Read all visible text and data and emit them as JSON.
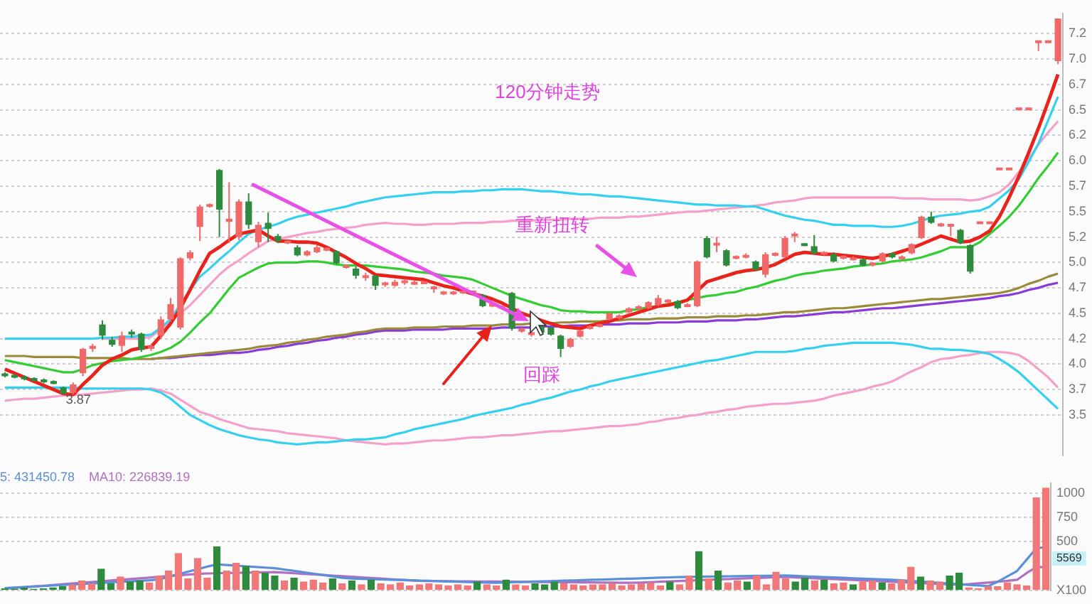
{
  "chart_data": [
    {
      "type": "candlestick",
      "title": "120分钟走势",
      "tick_labels": "y",
      "grid": "y",
      "categories": [
        null,
        null,
        null,
        null,
        null,
        null,
        null,
        null,
        null,
        null,
        null,
        null,
        null,
        null,
        null,
        null,
        null,
        null,
        null,
        null,
        null,
        null,
        null,
        null,
        null,
        null,
        null,
        null,
        null,
        null,
        null,
        null,
        null,
        null,
        null,
        null,
        null,
        null,
        null,
        null,
        null,
        null,
        null,
        null,
        null,
        null,
        null,
        null,
        null,
        null,
        null,
        null,
        null,
        null,
        null,
        null,
        null,
        null,
        null,
        null,
        null,
        null,
        null,
        null,
        null,
        null,
        null,
        null,
        null,
        null,
        null,
        null,
        null,
        null,
        null,
        null,
        null,
        null,
        null,
        null,
        null,
        null,
        null,
        null,
        null,
        null,
        null,
        null,
        null,
        null,
        null,
        null,
        null,
        null,
        null,
        null,
        null,
        null,
        null,
        null,
        null,
        null,
        null,
        null,
        null,
        null,
        null,
        null,
        null
      ],
      "ohlc": [
        [
          3.9,
          3.92,
          3.87,
          3.89
        ],
        [
          3.89,
          3.9,
          3.86,
          3.87
        ],
        [
          3.87,
          3.89,
          3.84,
          3.86
        ],
        [
          3.86,
          3.87,
          3.83,
          3.84
        ],
        [
          3.84,
          3.86,
          3.81,
          3.83
        ],
        [
          3.83,
          3.84,
          3.8,
          3.81
        ],
        [
          3.77,
          3.78,
          3.7,
          3.71
        ],
        [
          3.72,
          3.82,
          3.7,
          3.8
        ],
        [
          3.91,
          4.16,
          3.88,
          4.15
        ],
        [
          4.15,
          4.2,
          4.12,
          4.18
        ],
        [
          4.39,
          4.43,
          4.24,
          4.28
        ],
        [
          4.24,
          4.27,
          4.17,
          4.19
        ],
        [
          4.18,
          4.32,
          4.12,
          4.28
        ],
        [
          4.31,
          4.34,
          4.26,
          4.3
        ],
        [
          4.3,
          4.31,
          4.12,
          4.14
        ],
        [
          4.15,
          4.2,
          4.13,
          4.18
        ],
        [
          4.28,
          4.47,
          4.25,
          4.44
        ],
        [
          4.44,
          4.65,
          4.42,
          4.59
        ],
        [
          4.36,
          5.05,
          4.34,
          5.04
        ],
        [
          5.04,
          5.12,
          5.02,
          5.1
        ],
        [
          5.35,
          5.57,
          5.21,
          5.55
        ],
        [
          5.56,
          5.58,
          5.54,
          5.56
        ],
        [
          5.91,
          5.92,
          5.25,
          5.52
        ],
        [
          5.4,
          5.79,
          5.19,
          5.43
        ],
        [
          5.25,
          5.62,
          5.22,
          5.6
        ],
        [
          5.6,
          5.68,
          5.33,
          5.37
        ],
        [
          5.2,
          5.4,
          5.15,
          5.37
        ],
        [
          5.39,
          5.49,
          5.2,
          5.33
        ],
        [
          5.26,
          5.28,
          5.19,
          5.21
        ],
        [
          5.2,
          5.22,
          5.18,
          5.2
        ],
        [
          5.15,
          5.17,
          5.06,
          5.07
        ],
        [
          5.07,
          5.12,
          5.06,
          5.11
        ],
        [
          5.1,
          5.17,
          5.09,
          5.15
        ],
        [
          5.13,
          5.15,
          5.11,
          5.13
        ],
        [
          5.11,
          5.12,
          4.98,
          4.99
        ],
        [
          4.96,
          4.98,
          4.94,
          4.96
        ],
        [
          4.94,
          4.96,
          4.84,
          4.87
        ],
        [
          4.86,
          4.9,
          4.82,
          4.86
        ],
        [
          4.87,
          4.88,
          4.73,
          4.77
        ],
        [
          4.79,
          4.81,
          4.76,
          4.79
        ],
        [
          4.77,
          4.83,
          4.76,
          4.81
        ],
        [
          4.81,
          4.84,
          4.78,
          4.81
        ],
        [
          4.79,
          4.82,
          4.78,
          4.8
        ],
        [
          4.8,
          4.82,
          4.79,
          4.8
        ],
        [
          4.75,
          4.77,
          4.7,
          4.75
        ],
        [
          4.7,
          4.72,
          4.68,
          4.7
        ],
        [
          4.7,
          4.72,
          4.68,
          4.7
        ],
        [
          4.71,
          4.73,
          4.69,
          4.71
        ],
        [
          4.71,
          4.72,
          4.69,
          4.71
        ],
        [
          4.68,
          4.69,
          4.56,
          4.57
        ],
        [
          4.58,
          4.6,
          4.56,
          4.58
        ],
        [
          4.56,
          4.58,
          4.54,
          4.56
        ],
        [
          4.7,
          4.71,
          4.33,
          4.35
        ],
        [
          4.32,
          4.36,
          4.31,
          4.35
        ],
        [
          4.3,
          4.32,
          4.27,
          4.3
        ],
        [
          4.37,
          4.38,
          4.3,
          4.31
        ],
        [
          4.36,
          4.37,
          4.28,
          4.29
        ],
        [
          4.28,
          4.29,
          4.07,
          4.15
        ],
        [
          4.17,
          4.26,
          4.16,
          4.25
        ],
        [
          4.27,
          4.34,
          4.26,
          4.33
        ],
        [
          4.36,
          4.38,
          4.34,
          4.36
        ],
        [
          4.37,
          4.4,
          4.36,
          4.39
        ],
        [
          4.44,
          4.51,
          4.43,
          4.5
        ],
        [
          4.45,
          4.49,
          4.44,
          4.48
        ],
        [
          4.51,
          4.56,
          4.5,
          4.55
        ],
        [
          4.55,
          4.58,
          4.53,
          4.56
        ],
        [
          4.55,
          4.62,
          4.54,
          4.61
        ],
        [
          4.58,
          4.68,
          4.57,
          4.65
        ],
        [
          4.62,
          4.64,
          4.6,
          4.62
        ],
        [
          4.62,
          4.63,
          4.54,
          4.55
        ],
        [
          4.57,
          4.6,
          4.56,
          4.58
        ],
        [
          4.57,
          5.02,
          4.56,
          5.01
        ],
        [
          5.24,
          5.26,
          5.04,
          5.05
        ],
        [
          5.18,
          5.25,
          5.1,
          5.18
        ],
        [
          5.12,
          5.13,
          4.96,
          4.97
        ],
        [
          5.05,
          5.07,
          5.03,
          5.05
        ],
        [
          5.05,
          5.09,
          5.04,
          5.07
        ],
        [
          5.01,
          5.02,
          4.92,
          4.93
        ],
        [
          4.88,
          5.1,
          4.85,
          5.08
        ],
        [
          5.08,
          5.1,
          5.06,
          5.08
        ],
        [
          5.05,
          5.26,
          5.04,
          5.24
        ],
        [
          5.27,
          5.3,
          5.2,
          5.27
        ],
        [
          5.18,
          5.19,
          5.16,
          5.17
        ],
        [
          5.16,
          5.27,
          5.08,
          5.09
        ],
        [
          5.09,
          5.11,
          5.07,
          5.09
        ],
        [
          5.08,
          5.1,
          5.0,
          5.01
        ],
        [
          5.05,
          5.07,
          5.03,
          5.05
        ],
        [
          5.03,
          5.06,
          5.02,
          5.04
        ],
        [
          5.03,
          5.04,
          4.96,
          4.97
        ],
        [
          4.98,
          5.0,
          4.96,
          4.99
        ],
        [
          5.01,
          5.1,
          5.0,
          5.09
        ],
        [
          5.09,
          5.1,
          5.04,
          5.05
        ],
        [
          5.04,
          5.07,
          5.03,
          5.05
        ],
        [
          5.09,
          5.19,
          5.08,
          5.18
        ],
        [
          5.24,
          5.46,
          5.23,
          5.45
        ],
        [
          5.45,
          5.5,
          5.38,
          5.39
        ],
        [
          5.37,
          5.39,
          5.35,
          5.37
        ],
        [
          5.36,
          5.38,
          5.26,
          5.37
        ],
        [
          5.32,
          5.33,
          5.18,
          5.19
        ],
        [
          5.17,
          5.18,
          4.89,
          4.91
        ],
        [
          5.39,
          5.39,
          5.39,
          5.39
        ],
        [
          5.39,
          5.39,
          5.39,
          5.39
        ],
        [
          5.92,
          5.92,
          5.92,
          5.92
        ],
        [
          5.92,
          5.92,
          5.92,
          5.92
        ],
        [
          6.51,
          6.51,
          6.51,
          6.51
        ],
        [
          6.51,
          6.51,
          6.51,
          6.51
        ],
        [
          7.17,
          7.17,
          7.08,
          7.17
        ],
        [
          7.17,
          7.17,
          7.17,
          7.17
        ],
        [
          6.98,
          7.4,
          6.95,
          7.4
        ]
      ],
      "series": [
        {
          "type": "line",
          "color": "#e8231b",
          "values": [
            3.95,
            3.91,
            3.87,
            3.83,
            3.79,
            3.75,
            3.71,
            3.7,
            3.8,
            3.89,
            3.99,
            4.05,
            4.09,
            4.14,
            4.16,
            4.17,
            4.28,
            4.4,
            4.55,
            4.73,
            4.92,
            5.09,
            5.15,
            5.22,
            5.28,
            5.3,
            5.32,
            5.26,
            5.21,
            5.21,
            5.2,
            5.2,
            5.19,
            5.15,
            5.1,
            5.05,
            4.99,
            4.94,
            4.88,
            4.87,
            4.86,
            4.85,
            4.84,
            4.83,
            4.8,
            4.77,
            4.75,
            4.72,
            4.69,
            4.67,
            4.64,
            4.6,
            4.55,
            4.5,
            4.47,
            4.43,
            4.4,
            4.37,
            4.36,
            4.35,
            4.38,
            4.4,
            4.42,
            4.45,
            4.48,
            4.51,
            4.54,
            4.57,
            4.58,
            4.6,
            4.63,
            4.72,
            4.81,
            4.84,
            4.87,
            4.9,
            4.92,
            4.93,
            4.95,
            4.98,
            5.03,
            5.08,
            5.1,
            5.09,
            5.08,
            5.08,
            5.07,
            5.06,
            5.05,
            5.04,
            5.06,
            5.08,
            5.11,
            5.14,
            5.18,
            5.22,
            5.26,
            5.23,
            5.2,
            5.21,
            5.25,
            5.31,
            5.45,
            5.64,
            5.85,
            6.08,
            6.32,
            6.58,
            6.85
          ]
        },
        {
          "type": "line",
          "color": "#33cc33",
          "values": [
            4.04,
            4.02,
            4.0,
            3.98,
            3.96,
            3.94,
            3.92,
            3.92,
            3.95,
            3.99,
            4.01,
            4.03,
            4.04,
            4.05,
            4.07,
            4.09,
            4.12,
            4.16,
            4.22,
            4.31,
            4.41,
            4.5,
            4.62,
            4.74,
            4.85,
            4.9,
            4.95,
            4.99,
            5.0,
            5.0,
            5.0,
            5.01,
            5.01,
            5.0,
            4.98,
            4.97,
            4.97,
            4.97,
            4.96,
            4.95,
            4.94,
            4.93,
            4.91,
            4.9,
            4.89,
            4.87,
            4.86,
            4.85,
            4.83,
            4.79,
            4.75,
            4.71,
            4.67,
            4.64,
            4.61,
            4.58,
            4.56,
            4.53,
            4.52,
            4.52,
            4.51,
            4.51,
            4.51,
            4.51,
            4.53,
            4.54,
            4.56,
            4.57,
            4.59,
            4.61,
            4.63,
            4.65,
            4.67,
            4.68,
            4.7,
            4.71,
            4.74,
            4.76,
            4.79,
            4.82,
            4.84,
            4.87,
            4.89,
            4.9,
            4.92,
            4.93,
            4.94,
            4.96,
            4.97,
            4.98,
            4.99,
            5.01,
            5.02,
            5.03,
            5.05,
            5.08,
            5.11,
            5.15,
            5.15,
            5.15,
            5.2,
            5.28,
            5.36,
            5.45,
            5.56,
            5.69,
            5.83,
            5.95,
            6.08
          ]
        },
        {
          "type": "line",
          "color": "#33d0f0",
          "values": [
            4.25,
            4.25,
            4.25,
            4.25,
            4.25,
            4.25,
            4.25,
            4.25,
            4.25,
            4.25,
            4.26,
            4.26,
            4.27,
            4.27,
            4.28,
            4.29,
            4.36,
            4.44,
            4.59,
            4.73,
            4.86,
            4.94,
            5.03,
            5.11,
            5.2,
            5.28,
            5.32,
            5.35,
            5.38,
            5.42,
            5.45,
            5.47,
            5.49,
            5.51,
            5.53,
            5.55,
            5.58,
            5.6,
            5.62,
            5.64,
            5.65,
            5.66,
            5.67,
            5.68,
            5.69,
            5.69,
            5.69,
            5.7,
            5.7,
            5.71,
            5.71,
            5.72,
            5.72,
            5.72,
            5.71,
            5.7,
            5.7,
            5.69,
            5.68,
            5.67,
            5.67,
            5.66,
            5.65,
            5.65,
            5.64,
            5.63,
            5.62,
            5.61,
            5.6,
            5.59,
            5.58,
            5.57,
            5.57,
            5.56,
            5.56,
            5.56,
            5.55,
            5.55,
            5.52,
            5.49,
            5.46,
            5.44,
            5.42,
            5.41,
            5.39,
            5.37,
            5.37,
            5.36,
            5.36,
            5.36,
            5.35,
            5.35,
            5.36,
            5.38,
            5.41,
            5.44,
            5.46,
            5.47,
            5.48,
            5.5,
            5.51,
            5.55,
            5.63,
            5.71,
            5.82,
            5.99,
            6.17,
            6.4,
            6.63
          ]
        },
        {
          "type": "line",
          "color": "#f4a0c8",
          "values": [
            null,
            null,
            null,
            null,
            null,
            null,
            null,
            null,
            null,
            null,
            4.25,
            4.25,
            4.25,
            4.25,
            4.25,
            4.27,
            4.34,
            4.42,
            4.5,
            4.58,
            4.68,
            4.78,
            4.88,
            4.96,
            5.02,
            5.09,
            5.15,
            5.21,
            5.23,
            5.25,
            5.27,
            5.29,
            5.3,
            5.32,
            5.33,
            5.34,
            5.35,
            5.37,
            5.38,
            5.39,
            5.38,
            5.38,
            5.37,
            5.37,
            5.38,
            5.38,
            5.38,
            5.39,
            5.39,
            5.39,
            5.4,
            5.4,
            5.41,
            5.41,
            5.41,
            5.42,
            5.42,
            5.42,
            5.43,
            5.43,
            5.43,
            5.44,
            5.44,
            5.44,
            5.45,
            5.45,
            5.46,
            5.47,
            5.48,
            5.49,
            5.5,
            5.5,
            5.51,
            5.52,
            5.53,
            5.54,
            5.55,
            5.56,
            5.57,
            5.59,
            5.6,
            5.61,
            5.63,
            5.64,
            5.64,
            5.64,
            5.64,
            5.64,
            5.64,
            5.64,
            5.64,
            5.64,
            5.63,
            5.63,
            5.63,
            5.62,
            5.62,
            5.62,
            5.62,
            5.61,
            5.62,
            5.65,
            5.69,
            5.77,
            5.89,
            6.02,
            6.16,
            6.28,
            6.39
          ]
        },
        {
          "type": "line",
          "color": "#33d0f0",
          "values": [
            3.77,
            3.77,
            3.77,
            3.77,
            3.77,
            3.77,
            3.77,
            3.77,
            3.76,
            3.76,
            3.76,
            3.76,
            3.76,
            3.76,
            3.76,
            3.75,
            3.72,
            3.66,
            3.58,
            3.5,
            3.45,
            3.4,
            3.36,
            3.33,
            3.3,
            3.28,
            3.26,
            3.25,
            3.23,
            3.22,
            3.21,
            3.22,
            3.23,
            3.23,
            3.24,
            3.25,
            3.26,
            3.26,
            3.27,
            3.28,
            3.31,
            3.33,
            3.36,
            3.38,
            3.4,
            3.42,
            3.44,
            3.46,
            3.49,
            3.51,
            3.53,
            3.55,
            3.57,
            3.6,
            3.62,
            3.65,
            3.67,
            3.7,
            3.73,
            3.75,
            3.78,
            3.8,
            3.83,
            3.85,
            3.87,
            3.89,
            3.91,
            3.93,
            3.95,
            3.97,
            3.99,
            4.01,
            4.03,
            4.04,
            4.06,
            4.08,
            4.1,
            4.12,
            4.12,
            4.12,
            4.12,
            4.13,
            4.15,
            4.16,
            4.18,
            4.19,
            4.2,
            4.21,
            4.21,
            4.21,
            4.21,
            4.21,
            4.2,
            4.19,
            4.17,
            4.15,
            4.15,
            4.14,
            4.14,
            4.13,
            4.12,
            4.1,
            4.05,
            3.99,
            3.92,
            3.83,
            3.74,
            3.65,
            3.56
          ]
        },
        {
          "type": "line",
          "color": "#f4a0c8",
          "values": [
            3.64,
            3.65,
            3.66,
            3.66,
            3.67,
            3.68,
            3.69,
            3.7,
            3.7,
            3.71,
            3.72,
            3.73,
            3.74,
            3.75,
            3.75,
            3.76,
            3.74,
            3.71,
            3.65,
            3.59,
            3.53,
            3.5,
            3.46,
            3.43,
            3.4,
            3.37,
            3.36,
            3.35,
            3.34,
            3.32,
            3.31,
            3.3,
            3.29,
            3.28,
            3.27,
            3.25,
            3.24,
            3.23,
            3.22,
            3.21,
            3.22,
            3.22,
            3.23,
            3.24,
            3.25,
            3.25,
            3.26,
            3.27,
            3.28,
            3.28,
            3.29,
            3.3,
            3.3,
            3.31,
            3.32,
            3.33,
            3.34,
            3.34,
            3.35,
            3.36,
            3.37,
            3.38,
            3.39,
            3.39,
            3.4,
            3.41,
            3.43,
            3.44,
            3.46,
            3.47,
            3.49,
            3.5,
            3.52,
            3.53,
            3.55,
            3.56,
            3.58,
            3.59,
            3.6,
            3.61,
            3.61,
            3.62,
            3.63,
            3.64,
            3.66,
            3.69,
            3.71,
            3.73,
            3.75,
            3.78,
            3.8,
            3.83,
            3.88,
            3.93,
            3.97,
            4.02,
            4.05,
            4.06,
            4.08,
            4.09,
            4.11,
            4.12,
            4.12,
            4.11,
            4.09,
            4.03,
            3.95,
            3.87,
            3.77
          ]
        },
        {
          "type": "line",
          "color": "#9a8a3a",
          "values": [
            4.08,
            4.08,
            4.08,
            4.07,
            4.07,
            4.07,
            4.07,
            4.07,
            4.06,
            4.06,
            4.06,
            4.06,
            4.06,
            4.05,
            4.05,
            4.05,
            4.06,
            4.07,
            4.08,
            4.09,
            4.1,
            4.11,
            4.12,
            4.13,
            4.14,
            4.15,
            4.17,
            4.18,
            4.19,
            4.21,
            4.22,
            4.24,
            4.25,
            4.27,
            4.28,
            4.29,
            4.31,
            4.32,
            4.34,
            4.35,
            4.35,
            4.35,
            4.36,
            4.36,
            4.36,
            4.37,
            4.37,
            4.37,
            4.38,
            4.38,
            4.38,
            4.39,
            4.39,
            4.39,
            4.4,
            4.4,
            4.4,
            4.41,
            4.41,
            4.42,
            4.42,
            4.42,
            4.43,
            4.43,
            4.44,
            4.44,
            4.44,
            4.45,
            4.45,
            4.45,
            4.46,
            4.46,
            4.46,
            4.47,
            4.47,
            4.47,
            4.48,
            4.48,
            4.49,
            4.5,
            4.51,
            4.51,
            4.52,
            4.53,
            4.54,
            4.55,
            4.55,
            4.56,
            4.57,
            4.58,
            4.59,
            4.6,
            4.61,
            4.62,
            4.63,
            4.64,
            4.64,
            4.65,
            4.66,
            4.67,
            4.68,
            4.69,
            4.7,
            4.72,
            4.75,
            4.79,
            4.82,
            4.86,
            4.89
          ]
        },
        {
          "type": "line",
          "color": "#8a3ad8",
          "values": [
            null,
            null,
            null,
            null,
            null,
            null,
            null,
            null,
            null,
            null,
            null,
            null,
            null,
            null,
            null,
            4.05,
            4.06,
            4.06,
            4.07,
            4.08,
            4.09,
            4.09,
            4.1,
            4.11,
            4.11,
            4.12,
            4.14,
            4.15,
            4.17,
            4.18,
            4.2,
            4.21,
            4.23,
            4.24,
            4.26,
            4.27,
            4.29,
            4.3,
            4.32,
            4.33,
            4.33,
            4.33,
            4.34,
            4.34,
            4.34,
            4.34,
            4.35,
            4.35,
            4.35,
            4.35,
            4.35,
            4.36,
            4.36,
            4.36,
            4.36,
            4.37,
            4.37,
            4.37,
            4.38,
            4.38,
            4.38,
            4.39,
            4.39,
            4.39,
            4.4,
            4.4,
            4.4,
            4.41,
            4.41,
            4.41,
            4.42,
            4.42,
            4.42,
            4.43,
            4.43,
            4.43,
            4.44,
            4.44,
            4.45,
            4.46,
            4.47,
            4.47,
            4.48,
            4.49,
            4.5,
            4.51,
            4.51,
            4.52,
            4.53,
            4.54,
            4.55,
            4.55,
            4.56,
            4.57,
            4.58,
            4.59,
            4.6,
            4.61,
            4.62,
            4.63,
            4.64,
            4.65,
            4.67,
            4.68,
            4.7,
            4.73,
            4.75,
            4.78,
            4.8
          ]
        }
      ],
      "ylim": [
        3.1,
        7.45
      ],
      "yticks": [
        {
          "value": 3.5,
          "label": "3.5"
        },
        {
          "value": 3.75,
          "label": "3.7"
        },
        {
          "value": 4,
          "label": "4.0"
        },
        {
          "value": 4.25,
          "label": "4.2"
        },
        {
          "value": 4.5,
          "label": "4.5"
        },
        {
          "value": 4.75,
          "label": "4.7"
        },
        {
          "value": 5,
          "label": "5.0"
        },
        {
          "value": 5.25,
          "label": "5.2"
        },
        {
          "value": 5.5,
          "label": "5.5"
        },
        {
          "value": 5.75,
          "label": "5.7"
        },
        {
          "value": 6,
          "label": "6.0"
        },
        {
          "value": 6.25,
          "label": "6.2"
        },
        {
          "value": 6.5,
          "label": "6.5"
        },
        {
          "value": 6.75,
          "label": "6.7"
        },
        {
          "value": 7,
          "label": "7.0"
        },
        {
          "value": 7.25,
          "label": "7.2"
        }
      ],
      "annotations": [
        "重新扭转",
        "回踩",
        {
          "text": "3.87",
          "y": 3.7
        }
      ]
    },
    {
      "type": "bar",
      "tick_labels": "y",
      "grid": "y",
      "categories": [
        null,
        null,
        null,
        null,
        null,
        null,
        null,
        null,
        null,
        null,
        null,
        null,
        null,
        null,
        null,
        null,
        null,
        null,
        null,
        null,
        null,
        null,
        null,
        null,
        null,
        null,
        null,
        null,
        null,
        null,
        null,
        null,
        null,
        null,
        null,
        null,
        null,
        null,
        null,
        null,
        null,
        null,
        null,
        null,
        null,
        null,
        null,
        null,
        null,
        null,
        null,
        null,
        null,
        null,
        null,
        null,
        null,
        null,
        null,
        null,
        null,
        null,
        null,
        null,
        null,
        null,
        null,
        null,
        null,
        null,
        null,
        null,
        null,
        null,
        null,
        null,
        null,
        null,
        null,
        null,
        null,
        null,
        null,
        null,
        null,
        null,
        null,
        null,
        null,
        null,
        null,
        null,
        null,
        null,
        null,
        null,
        null,
        null,
        null,
        null,
        null,
        null,
        null,
        null,
        null,
        null,
        null,
        null,
        null
      ],
      "values": [
        20,
        15,
        25,
        15,
        20,
        30,
        40,
        60,
        100,
        70,
        220,
        70,
        140,
        90,
        100,
        80,
        150,
        200,
        380,
        120,
        330,
        130,
        450,
        200,
        280,
        250,
        200,
        180,
        150,
        100,
        130,
        90,
        110,
        80,
        120,
        70,
        100,
        60,
        110,
        70,
        60,
        80,
        50,
        60,
        70,
        60,
        50,
        60,
        50,
        90,
        60,
        50,
        110,
        60,
        50,
        70,
        60,
        90,
        70,
        60,
        50,
        60,
        60,
        70,
        50,
        60,
        70,
        80,
        50,
        90,
        60,
        150,
        400,
        120,
        200,
        80,
        100,
        90,
        150,
        60,
        190,
        120,
        90,
        130,
        100,
        110,
        70,
        80,
        60,
        90,
        100,
        80,
        70,
        110,
        240,
        140,
        100,
        90,
        150,
        180,
        30,
        20,
        40,
        40,
        80,
        60,
        50,
        950,
        1050
      ],
      "colors": [
        "#2e8b3e",
        "#2e8b3e",
        "#2e8b3e",
        "#2e8b3e",
        "#2e8b3e",
        "#2e8b3e",
        "#2e8b3e",
        "#f07878",
        "#f07878",
        "#f07878",
        "#2e8b3e",
        "#2e8b3e",
        "#f07878",
        "#2e8b3e",
        "#2e8b3e",
        "#f07878",
        "#f07878",
        "#f07878",
        "#f07878",
        "#f07878",
        "#f07878",
        "#f07878",
        "#2e8b3e",
        "#f07878",
        "#f07878",
        "#2e8b3e",
        "#f07878",
        "#2e8b3e",
        "#2e8b3e",
        "#f07878",
        "#2e8b3e",
        "#f07878",
        "#f07878",
        "#f07878",
        "#2e8b3e",
        "#f07878",
        "#2e8b3e",
        "#f07878",
        "#2e8b3e",
        "#f07878",
        "#f07878",
        "#f07878",
        "#f07878",
        "#f07878",
        "#f07878",
        "#f07878",
        "#f07878",
        "#f07878",
        "#f07878",
        "#2e8b3e",
        "#f07878",
        "#f07878",
        "#2e8b3e",
        "#f07878",
        "#f07878",
        "#2e8b3e",
        "#2e8b3e",
        "#2e8b3e",
        "#f07878",
        "#f07878",
        "#f07878",
        "#f07878",
        "#f07878",
        "#f07878",
        "#f07878",
        "#f07878",
        "#f07878",
        "#f07878",
        "#f07878",
        "#2e8b3e",
        "#f07878",
        "#f07878",
        "#2e8b3e",
        "#f07878",
        "#2e8b3e",
        "#f07878",
        "#f07878",
        "#2e8b3e",
        "#f07878",
        "#f07878",
        "#f07878",
        "#f07878",
        "#2e8b3e",
        "#2e8b3e",
        "#f07878",
        "#2e8b3e",
        "#f07878",
        "#f07878",
        "#2e8b3e",
        "#f07878",
        "#f07878",
        "#2e8b3e",
        "#f07878",
        "#f07878",
        "#f07878",
        "#2e8b3e",
        "#f07878",
        "#f07878",
        "#2e8b3e",
        "#2e8b3e",
        "#f07878",
        "#f07878",
        "#f07878",
        "#f07878",
        "#f07878",
        "#f07878",
        "#f07878",
        "#f07878",
        "#f07878"
      ],
      "series": [
        {
          "type": "line",
          "name": "5: 431450.78",
          "color": "#5b8fd9",
          "values": [
            26,
            31,
            37,
            42,
            47,
            53,
            58,
            63,
            69,
            74,
            79,
            85,
            90,
            95,
            100,
            106,
            115,
            142,
            168,
            194,
            220,
            246,
            269,
            262,
            256,
            249,
            243,
            236,
            230,
            216,
            202,
            188,
            174,
            160,
            146,
            132,
            124,
            121,
            118,
            115,
            112,
            109,
            106,
            103,
            100,
            97,
            94,
            91,
            88,
            85,
            82,
            81,
            84,
            87,
            90,
            93,
            96,
            99,
            102,
            105,
            108,
            111,
            114,
            117,
            120,
            123,
            126,
            129,
            133,
            136,
            139,
            141,
            142,
            144,
            145,
            147,
            148,
            150,
            151,
            152,
            154,
            155,
            151,
            147,
            143,
            139,
            135,
            131,
            127,
            123,
            119,
            115,
            111,
            106,
            99,
            93,
            86,
            79,
            73,
            66,
            59,
            53,
            46,
            91,
            146,
            201,
            317,
            435,
            445
          ]
        },
        {
          "type": "line",
          "name": "MA10: 226839.19",
          "color": "#b070c0",
          "values": [
            20,
            28,
            35,
            43,
            50,
            58,
            66,
            73,
            81,
            88,
            96,
            104,
            111,
            119,
            126,
            134,
            142,
            149,
            157,
            164,
            172,
            176,
            178,
            180,
            182,
            184,
            186,
            188,
            190,
            184,
            178,
            172,
            166,
            160,
            154,
            148,
            142,
            136,
            130,
            124,
            118,
            112,
            106,
            100,
            99,
            98,
            97,
            96,
            95,
            94,
            94,
            93,
            92,
            91,
            90,
            89,
            88,
            87,
            86,
            85,
            84,
            84,
            83,
            82,
            81,
            80,
            83,
            87,
            91,
            95,
            99,
            103,
            107,
            111,
            115,
            118,
            122,
            126,
            130,
            134,
            138,
            140,
            135,
            131,
            126,
            122,
            118,
            113,
            109,
            104,
            100,
            95,
            91,
            86,
            82,
            78,
            73,
            69,
            64,
            60,
            67,
            75,
            83,
            92,
            100,
            111,
            180,
            240,
            240
          ]
        }
      ],
      "ylim": [
        0,
        1100
      ],
      "yticks": [
        {
          "value": 0,
          "label": "X100"
        },
        500,
        750,
        1000
      ],
      "annotations": [
        "5569"
      ]
    }
  ]
}
